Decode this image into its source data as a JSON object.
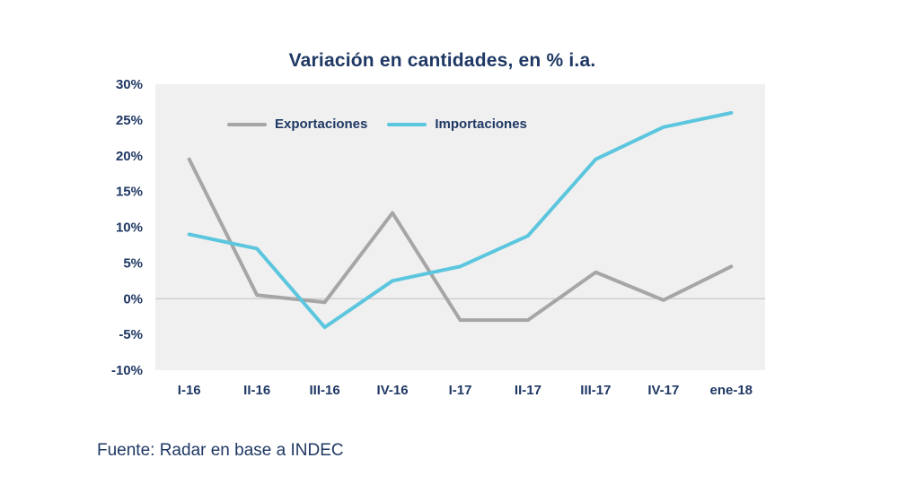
{
  "chart_data": {
    "type": "line",
    "title": "Variación en cantidades, en % i.a.",
    "categories": [
      "I-16",
      "II-16",
      "III-16",
      "IV-16",
      "I-17",
      "II-17",
      "III-17",
      "IV-17",
      "ene-18"
    ],
    "series": [
      {
        "name": "Exportaciones",
        "color": "#A6A6A6",
        "values": [
          19.5,
          0.5,
          -0.5,
          12,
          -3,
          -3,
          3.7,
          -0.2,
          4.5
        ]
      },
      {
        "name": "Importaciones",
        "color": "#5BC6DE",
        "values": [
          9,
          7,
          -4,
          2.5,
          4.5,
          8.8,
          19.5,
          24,
          26
        ]
      }
    ],
    "ylim": [
      -10,
      30
    ],
    "ytick_step": 5,
    "ytick_suffix": "%",
    "grid": false,
    "zero_line": true,
    "legend_position": "top-inside"
  },
  "source": {
    "text": "Fuente: Radar en base a INDEC"
  },
  "colors": {
    "title": "#1F3864",
    "axis_label": "#1F3864",
    "plot_bg": "#F0F0F0",
    "zero_line": "#C0C0C0"
  }
}
